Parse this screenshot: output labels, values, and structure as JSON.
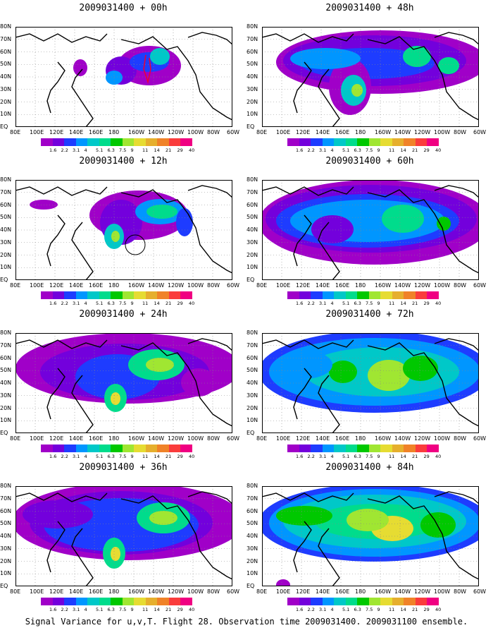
{
  "caption": "Signal Variance for u,v,T. Flight 28. Observation time 2009031400. 2009031100 ensemble.",
  "panels": [
    {
      "title": "2009031400 + 00h"
    },
    {
      "title": "2009031400 + 48h"
    },
    {
      "title": "2009031400 + 12h"
    },
    {
      "title": "2009031400 + 60h"
    },
    {
      "title": "2009031400 + 24h"
    },
    {
      "title": "2009031400 + 72h"
    },
    {
      "title": "2009031400 + 36h"
    },
    {
      "title": "2009031400 + 84h"
    }
  ],
  "lat_labels": [
    "80N",
    "70N",
    "60N",
    "50N",
    "40N",
    "30N",
    "20N",
    "10N",
    "EQ"
  ],
  "lon_labels": [
    "80E",
    "100E",
    "120E",
    "140E",
    "160E",
    "180",
    "160W",
    "140W",
    "120W",
    "100W",
    "80W",
    "60W"
  ],
  "colorbar": {
    "labels": [
      "1.6",
      "2.2",
      "3.1",
      "4",
      "5.1",
      "6.3",
      "7.5",
      "9",
      "11",
      "14",
      "21",
      "29",
      "40"
    ],
    "colors": [
      "#a000c8",
      "#7300dc",
      "#1e3cff",
      "#0096ff",
      "#00c8c8",
      "#00dc8c",
      "#00c800",
      "#a0e632",
      "#e6dc32",
      "#e6af2d",
      "#f08228",
      "#fa3c3c",
      "#f00082"
    ]
  }
}
